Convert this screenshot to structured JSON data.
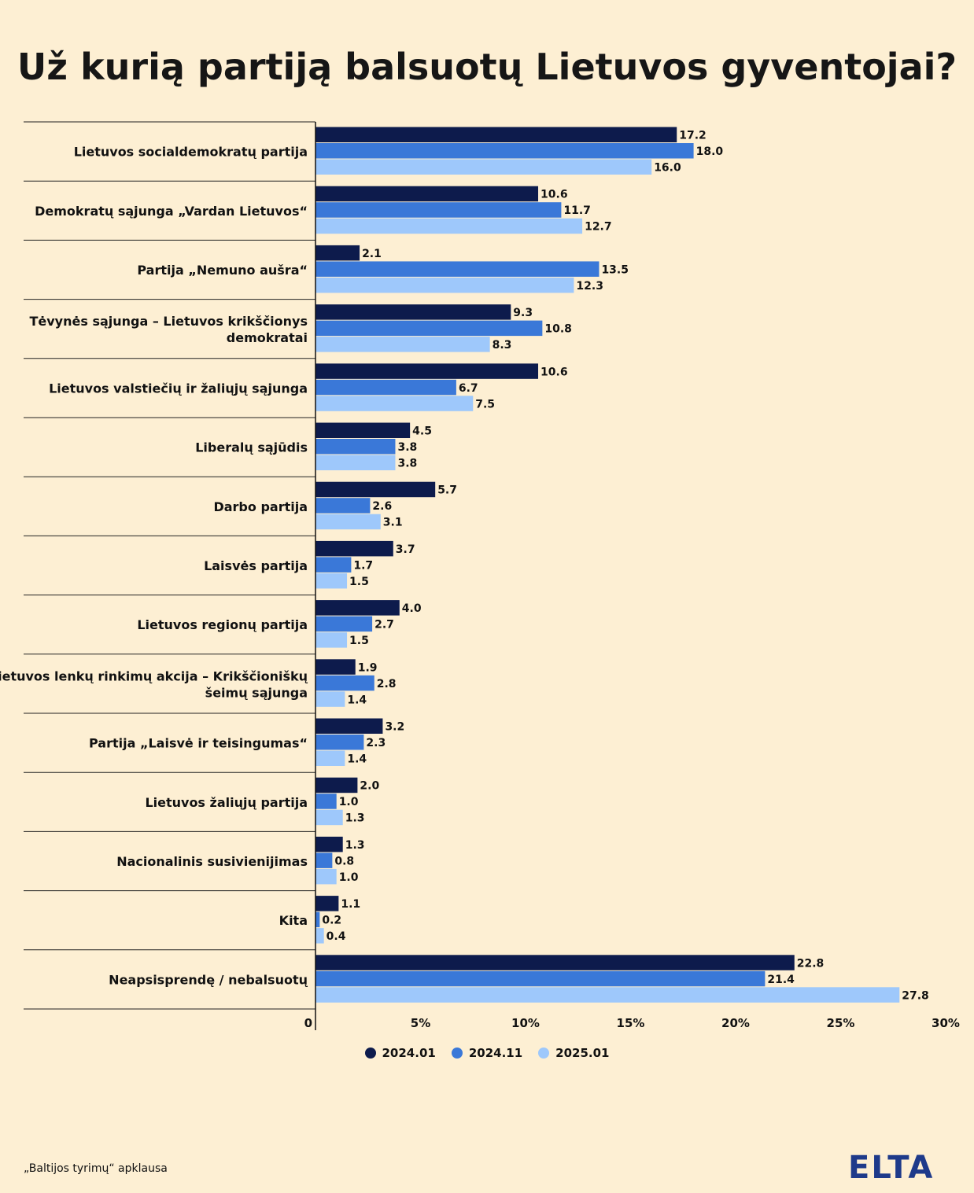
{
  "title": "Už kurią partiją balsuotų Lietuvos gyventojai?",
  "source": "„Baltijos tyrimų“ apklausa",
  "logo": "ELTA",
  "chart_data": {
    "type": "bar",
    "orientation": "horizontal",
    "categories": [
      [
        "Lietuvos socialdemokratų partija"
      ],
      [
        "Demokratų sąjunga „Vardan Lietuvos“"
      ],
      [
        "Partija „Nemuno aušra“"
      ],
      [
        "Tėvynės sąjunga – Lietuvos krikščionys",
        "demokratai"
      ],
      [
        "Lietuvos valstiečių ir žaliųjų sąjunga"
      ],
      [
        "Liberalų sąjūdis"
      ],
      [
        "Darbo partija"
      ],
      [
        "Laisvės partija"
      ],
      [
        "Lietuvos regionų partija"
      ],
      [
        "Lietuvos lenkų rinkimų akcija – Krikščioniškų",
        "šeimų sąjunga"
      ],
      [
        "Partija „Laisvė ir teisingumas“"
      ],
      [
        "Lietuvos žaliųjų partija"
      ],
      [
        "Nacionalinis susivienijimas"
      ],
      [
        "Kita"
      ],
      [
        "Neapsisprendę / nebalsuotų"
      ]
    ],
    "series": [
      {
        "name": "2024.01",
        "color": "#0d1b4c",
        "values": [
          17.2,
          10.6,
          2.1,
          9.3,
          10.6,
          4.5,
          5.7,
          3.7,
          4.0,
          1.9,
          3.2,
          2.0,
          1.3,
          1.1,
          22.8
        ]
      },
      {
        "name": "2024.11",
        "color": "#3a78d8",
        "values": [
          18.0,
          11.7,
          13.5,
          10.8,
          6.7,
          3.8,
          2.6,
          1.7,
          2.7,
          2.8,
          2.3,
          1.0,
          0.8,
          0.2,
          21.4
        ]
      },
      {
        "name": "2025.01",
        "color": "#9ec8fb",
        "values": [
          16.0,
          12.7,
          12.3,
          8.3,
          7.5,
          3.8,
          3.1,
          1.5,
          1.5,
          1.4,
          1.4,
          1.3,
          1.0,
          0.4,
          27.8
        ]
      }
    ],
    "x_ticks": [
      "0",
      "5%",
      "10%",
      "15%",
      "20%",
      "25%",
      "30%"
    ],
    "xlim": [
      0,
      30
    ],
    "legend": "bottom-center",
    "grid": false
  }
}
